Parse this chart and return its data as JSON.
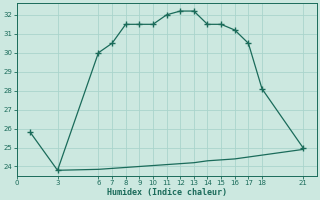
{
  "xlabel": "Humidex (Indice chaleur)",
  "bg_color": "#cce8e0",
  "line_color": "#1a6b5a",
  "grid_color": "#aad4cc",
  "upper_x": [
    1,
    3,
    6,
    7,
    8,
    9,
    10,
    11,
    12,
    13,
    14,
    15,
    16,
    17,
    18,
    21
  ],
  "upper_y": [
    25.8,
    23.8,
    30.0,
    30.5,
    31.5,
    31.5,
    31.5,
    32.0,
    32.2,
    32.2,
    31.5,
    31.5,
    31.2,
    30.5,
    28.1,
    25.0
  ],
  "lower_x": [
    3,
    6,
    7,
    8,
    9,
    10,
    11,
    12,
    13,
    14,
    15,
    16,
    17,
    18,
    21
  ],
  "lower_y": [
    23.8,
    23.85,
    23.9,
    23.95,
    24.0,
    24.05,
    24.1,
    24.15,
    24.2,
    24.3,
    24.35,
    24.4,
    24.5,
    24.6,
    24.9
  ],
  "marker_x": [
    3,
    6,
    7,
    8,
    9,
    10,
    11,
    12,
    13,
    14,
    15,
    16,
    17,
    18,
    21
  ],
  "marker_y": [
    23.8,
    30.0,
    30.5,
    31.5,
    31.5,
    31.5,
    32.0,
    32.2,
    32.2,
    31.5,
    31.5,
    31.2,
    30.5,
    28.1,
    25.0
  ],
  "start_marker_x": [
    1
  ],
  "start_marker_y": [
    25.8
  ],
  "xticks": [
    0,
    3,
    6,
    7,
    8,
    9,
    10,
    11,
    12,
    13,
    14,
    15,
    16,
    17,
    18,
    21
  ],
  "yticks": [
    24,
    25,
    26,
    27,
    28,
    29,
    30,
    31,
    32
  ],
  "xlim": [
    0,
    22
  ],
  "ylim": [
    23.5,
    32.6
  ]
}
